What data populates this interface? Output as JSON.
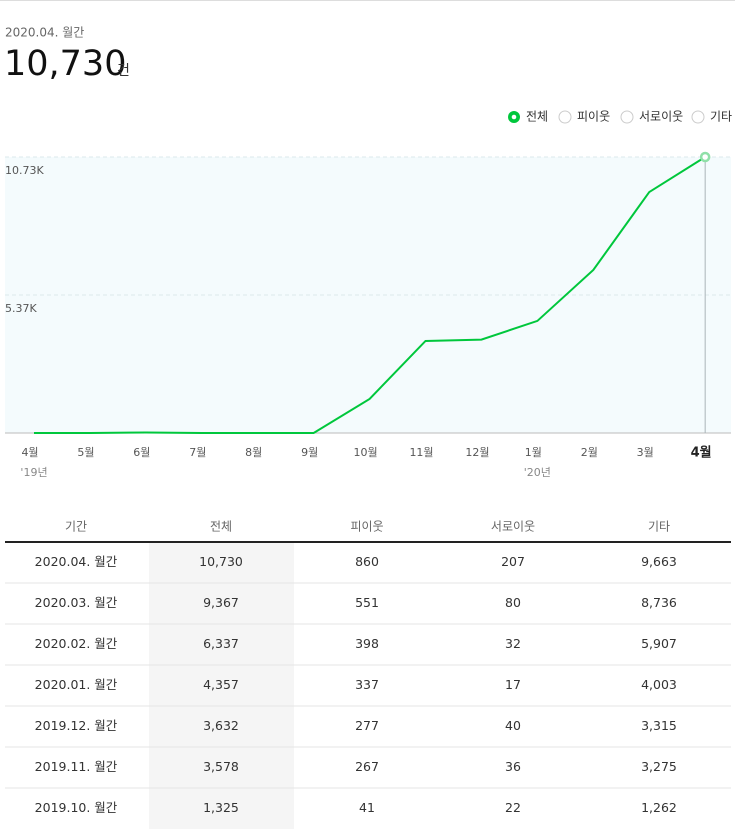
{
  "header": {
    "period": "2020.04. 월간",
    "total": "10,730",
    "unit": "건"
  },
  "chart_data": {
    "type": "line",
    "categories": [
      "4월",
      "5월",
      "6월",
      "7월",
      "8월",
      "9월",
      "10월",
      "11월",
      "12월",
      "1월",
      "2월",
      "3월",
      "4월"
    ],
    "year_labels": [
      "'19년",
      null,
      null,
      null,
      null,
      null,
      null,
      null,
      null,
      "'20년",
      null,
      null,
      null
    ],
    "series": [
      {
        "name": "전체",
        "color": "#00c73c",
        "values": [
          0,
          0,
          20,
          0,
          0,
          0,
          1325,
          3578,
          3632,
          4357,
          6337,
          9367,
          10730
        ]
      }
    ],
    "other_options": [
      "피이웃",
      "서로이웃",
      "기타"
    ],
    "ylim": [
      0,
      10730
    ],
    "yticks": [
      {
        "value": 10730,
        "label": "10.73K"
      },
      {
        "value": 5365,
        "label": "5.37K"
      }
    ],
    "grid": true
  },
  "table": {
    "columns": [
      "기간",
      "전체",
      "피이웃",
      "서로이웃",
      "기타"
    ],
    "rows": [
      [
        "2020.04. 월간",
        "10,730",
        "860",
        "207",
        "9,663"
      ],
      [
        "2020.03. 월간",
        "9,367",
        "551",
        "80",
        "8,736"
      ],
      [
        "2020.02. 월간",
        "6,337",
        "398",
        "32",
        "5,907"
      ],
      [
        "2020.01. 월간",
        "4,357",
        "337",
        "17",
        "4,003"
      ],
      [
        "2019.12. 월간",
        "3,632",
        "277",
        "40",
        "3,315"
      ],
      [
        "2019.11. 월간",
        "3,578",
        "267",
        "36",
        "3,275"
      ],
      [
        "2019.10. 월간",
        "1,325",
        "41",
        "22",
        "1,262"
      ]
    ]
  }
}
